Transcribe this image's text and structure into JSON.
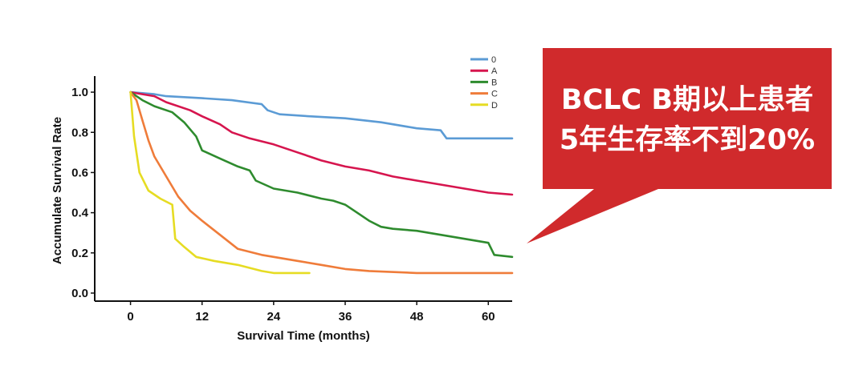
{
  "chart_data": {
    "type": "line",
    "xlabel": "Survival Time (months)",
    "ylabel": "Accumulate Survival Rate",
    "xlim": [
      -6,
      64
    ],
    "ylim": [
      -0.04,
      1.08
    ],
    "x_ticks": [
      "0",
      "12",
      "24",
      "36",
      "48",
      "60"
    ],
    "y_ticks": [
      "0.0",
      "0.2",
      "0.4",
      "0.6",
      "0.8",
      "1.0"
    ],
    "legend_position": "top-right",
    "series": [
      {
        "name": "0",
        "color": "#5b9bd5",
        "points": [
          [
            0,
            1.0
          ],
          [
            4,
            0.99
          ],
          [
            6,
            0.98
          ],
          [
            12,
            0.97
          ],
          [
            17,
            0.96
          ],
          [
            22,
            0.94
          ],
          [
            23,
            0.91
          ],
          [
            25,
            0.89
          ],
          [
            30,
            0.88
          ],
          [
            36,
            0.87
          ],
          [
            42,
            0.85
          ],
          [
            48,
            0.82
          ],
          [
            52,
            0.81
          ],
          [
            53,
            0.77
          ],
          [
            64,
            0.77
          ]
        ]
      },
      {
        "name": "A",
        "color": "#d6154e",
        "points": [
          [
            0,
            1.0
          ],
          [
            4,
            0.98
          ],
          [
            6,
            0.95
          ],
          [
            10,
            0.91
          ],
          [
            12,
            0.88
          ],
          [
            15,
            0.84
          ],
          [
            17,
            0.8
          ],
          [
            20,
            0.77
          ],
          [
            24,
            0.74
          ],
          [
            28,
            0.7
          ],
          [
            32,
            0.66
          ],
          [
            36,
            0.63
          ],
          [
            40,
            0.61
          ],
          [
            44,
            0.58
          ],
          [
            48,
            0.56
          ],
          [
            52,
            0.54
          ],
          [
            56,
            0.52
          ],
          [
            60,
            0.5
          ],
          [
            64,
            0.49
          ]
        ]
      },
      {
        "name": "B",
        "color": "#2e8b2e",
        "points": [
          [
            0,
            1.0
          ],
          [
            2,
            0.96
          ],
          [
            4,
            0.93
          ],
          [
            7,
            0.9
          ],
          [
            9,
            0.85
          ],
          [
            11,
            0.78
          ],
          [
            12,
            0.71
          ],
          [
            15,
            0.67
          ],
          [
            18,
            0.63
          ],
          [
            20,
            0.61
          ],
          [
            21,
            0.56
          ],
          [
            24,
            0.52
          ],
          [
            28,
            0.5
          ],
          [
            32,
            0.47
          ],
          [
            34,
            0.46
          ],
          [
            36,
            0.44
          ],
          [
            38,
            0.4
          ],
          [
            40,
            0.36
          ],
          [
            42,
            0.33
          ],
          [
            44,
            0.32
          ],
          [
            48,
            0.31
          ],
          [
            52,
            0.29
          ],
          [
            56,
            0.27
          ],
          [
            60,
            0.25
          ],
          [
            61,
            0.19
          ],
          [
            64,
            0.18
          ]
        ]
      },
      {
        "name": "C",
        "color": "#ef7c3a",
        "points": [
          [
            0,
            1.0
          ],
          [
            1,
            0.96
          ],
          [
            2,
            0.86
          ],
          [
            3,
            0.76
          ],
          [
            4,
            0.68
          ],
          [
            6,
            0.58
          ],
          [
            8,
            0.48
          ],
          [
            10,
            0.41
          ],
          [
            12,
            0.36
          ],
          [
            15,
            0.29
          ],
          [
            18,
            0.22
          ],
          [
            22,
            0.19
          ],
          [
            24,
            0.18
          ],
          [
            28,
            0.16
          ],
          [
            32,
            0.14
          ],
          [
            36,
            0.12
          ],
          [
            40,
            0.11
          ],
          [
            48,
            0.1
          ],
          [
            56,
            0.1
          ],
          [
            64,
            0.1
          ]
        ]
      },
      {
        "name": "D",
        "color": "#e6dc23",
        "points": [
          [
            0,
            1.0
          ],
          [
            0.6,
            0.78
          ],
          [
            1.5,
            0.6
          ],
          [
            3,
            0.51
          ],
          [
            5,
            0.47
          ],
          [
            7,
            0.44
          ],
          [
            7.5,
            0.27
          ],
          [
            9,
            0.23
          ],
          [
            11,
            0.18
          ],
          [
            14,
            0.16
          ],
          [
            18,
            0.14
          ],
          [
            22,
            0.11
          ],
          [
            24,
            0.1
          ],
          [
            30,
            0.1
          ]
        ]
      }
    ]
  },
  "callout": {
    "line1": "BCLC B期以上患者",
    "line2": "5年生存率不到20%",
    "color": "#d02a2c"
  }
}
